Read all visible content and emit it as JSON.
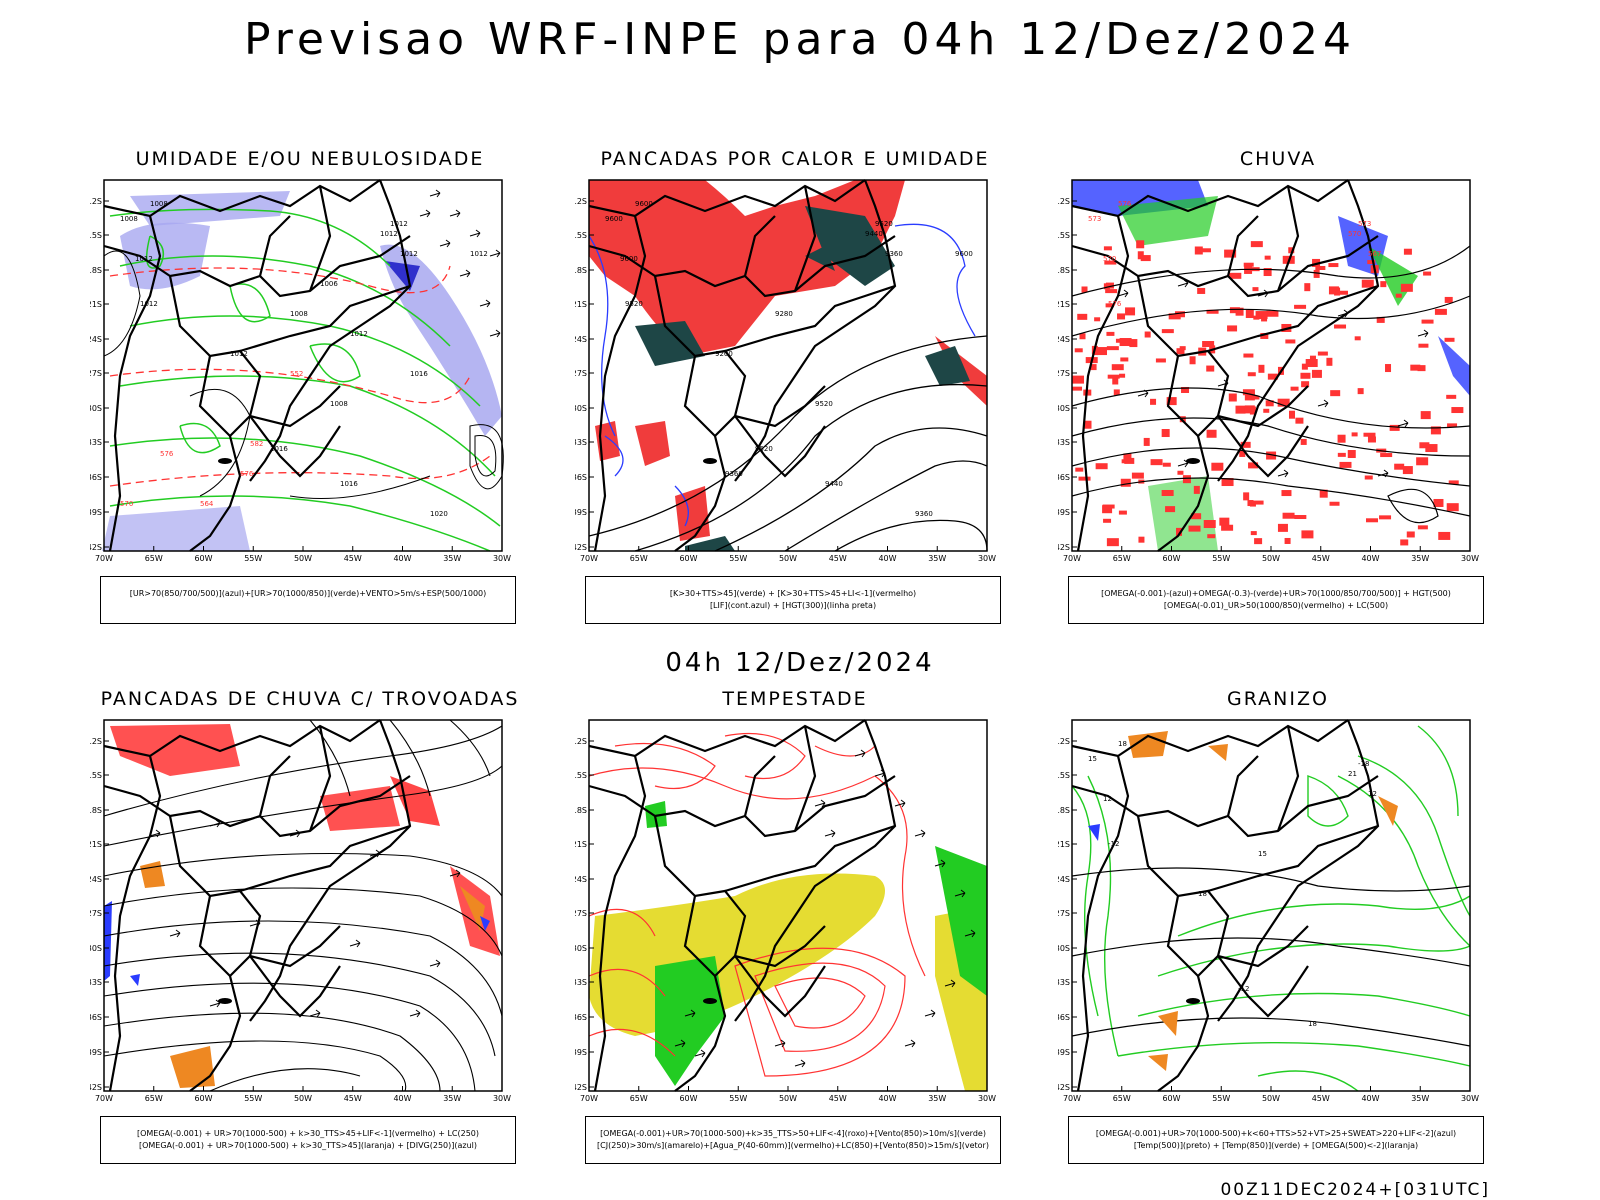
{
  "title": "Previsao WRF-INPE  para 04h 12/Dez/2024",
  "subtitle": "04h 12/Dez/2024",
  "footer": "00Z11DEC2024+[031UTC]",
  "axes": {
    "lat_labels": [
      "12S",
      "15S",
      "18S",
      "21S",
      "24S",
      "27S",
      "30S",
      "33S",
      "36S",
      "39S",
      "42S"
    ],
    "lon_labels": [
      "70W",
      "65W",
      "60W",
      "55W",
      "50W",
      "45W",
      "40W",
      "35W",
      "30W"
    ]
  },
  "colors": {
    "blue": "#2a3cff",
    "green": "#22cc22",
    "red": "#ff3333",
    "lavender": "#a8a8f0",
    "yellow": "#e5dc32",
    "darkgreen": "#1e4646",
    "orange": "#ee8822",
    "purple": "#9a2ad8"
  },
  "panels": [
    {
      "title": "UMIDADE E/OU NEBULOSIDADE",
      "legend": [
        "[UR>70(850/700/500)](azul)+[UR>70(1000/850)](verde)+VENTO>5m/s+ESP(500/1000)"
      ],
      "labels": [
        "1008",
        "1008",
        "1012",
        "1012",
        "1012",
        "1012",
        "1012",
        "1008",
        "1012",
        "1016",
        "1016",
        "1020",
        "1012",
        "1008",
        "576",
        "576",
        "570",
        "564",
        "582",
        "552",
        "1006",
        "1012",
        "1016"
      ]
    },
    {
      "title": "PANCADAS POR CALOR E UMIDADE",
      "legend": [
        "[K>30+TTS>45](verde) + [K>30+TTS>45+LI<-1](vermelho)",
        "[LIF](cont.azul) + [HGT(300)](linha preta)"
      ],
      "labels": [
        "9600",
        "9600",
        "9600",
        "9520",
        "9520",
        "9440",
        "9360",
        "9280",
        "9200",
        "9520",
        "9440",
        "9360",
        "9600",
        "9520",
        "9360"
      ]
    },
    {
      "title": "CHUVA",
      "legend": [
        "[OMEGA(-0.001)-(azul)+OMEGA(-0.3)-(verde)+UR>70(1000/850/700/500)] + HGT(500)",
        "[OMEGA(-0.01)_UR>50(1000/850)(vermelho) + LC(500)"
      ],
      "labels": [
        "576",
        "573",
        "570",
        "576",
        "573",
        "570",
        "567"
      ]
    },
    {
      "title": "PANCADAS DE CHUVA C/ TROVOADAS",
      "legend": [
        "[OMEGA(-0.001) + UR>70(1000-500) + k>30_TTS>45+LIF<-1](vermelho) + LC(250)",
        "[OMEGA(-0.001) + UR>70(1000-500) + k>30_TTS>45](laranja) + [DIVG(250)](azul)"
      ],
      "labels": []
    },
    {
      "title": "TEMPESTADE",
      "legend": [
        "[OMEGA(-0.001)+UR>70(1000-500)+k>35_TTS>50+LIF<-4](roxo)+[Vento(850)>10m/s](verde)",
        "[CJ(250)>30m/s](amarelo)+[Agua_P(40-60mm)](vermelho)+LC(850)+[Vento(850)>15m/s](vetor)"
      ],
      "labels": []
    },
    {
      "title": "GRANIZO",
      "legend": [
        "[OMEGA(-0.001)+UR>70(1000-500)+k<60+TTS>52+VT>25+SWEAT>220+LIF<-2](azul)",
        "[Temp(500)](preto) + [Temp(850)](verde) + [OMEGA(500)<-2](laranja)"
      ],
      "labels": [
        "18",
        "15",
        "12",
        "-12",
        "-18",
        "21",
        "12",
        "15",
        "18",
        "-12",
        "18"
      ]
    }
  ]
}
